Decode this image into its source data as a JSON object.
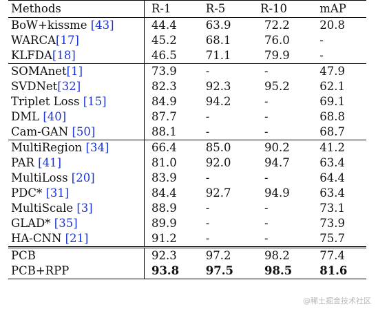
{
  "table": {
    "headers": [
      "Methods",
      "R-1",
      "R-5",
      "R-10",
      "mAP"
    ],
    "groups": [
      [
        {
          "name": "BoW+kissme ",
          "ref": "[43]",
          "r1": "44.4",
          "r5": "63.9",
          "r10": "72.2",
          "map": "20.8"
        },
        {
          "name": "WARCA",
          "ref": "[17]",
          "r1": "45.2",
          "r5": "68.1",
          "r10": "76.0",
          "map": "-"
        },
        {
          "name": "KLFDA",
          "ref": "[18]",
          "r1": "46.5",
          "r5": "71.1",
          "r10": "79.9",
          "map": "-"
        }
      ],
      [
        {
          "name": "SOMAnet",
          "ref": "[1]",
          "r1": "73.9",
          "r5": "-",
          "r10": "-",
          "map": "47.9"
        },
        {
          "name": "SVDNet",
          "ref": "[32]",
          "r1": "82.3",
          "r5": "92.3",
          "r10": "95.2",
          "map": "62.1"
        },
        {
          "name": "Triplet Loss ",
          "ref": "[15]",
          "r1": "84.9",
          "r5": "94.2",
          "r10": "-",
          "map": "69.1"
        },
        {
          "name": "DML ",
          "ref": "[40]",
          "r1": "87.7",
          "r5": "-",
          "r10": "-",
          "map": "68.8"
        },
        {
          "name": "Cam-GAN ",
          "ref": "[50]",
          "r1": "88.1",
          "r5": "-",
          "r10": "-",
          "map": "68.7"
        }
      ],
      [
        {
          "name": "MultiRegion ",
          "ref": "[34]",
          "r1": "66.4",
          "r5": "85.0",
          "r10": "90.2",
          "map": "41.2"
        },
        {
          "name": "PAR ",
          "ref": "[41]",
          "r1": "81.0",
          "r5": "92.0",
          "r10": "94.7",
          "map": "63.4"
        },
        {
          "name": "MultiLoss ",
          "ref": "[20]",
          "r1": "83.9",
          "r5": "-",
          "r10": "-",
          "map": "64.4"
        },
        {
          "name": "PDC* ",
          "ref": "[31]",
          "r1": "84.4",
          "r5": "92.7",
          "r10": "94.9",
          "map": "63.4"
        },
        {
          "name": "MultiScale ",
          "ref": "[3]",
          "r1": "88.9",
          "r5": "-",
          "r10": "-",
          "map": "73.1"
        },
        {
          "name": "GLAD* ",
          "ref": "[35]",
          "r1": "89.9",
          "r5": "-",
          "r10": "-",
          "map": "73.9"
        },
        {
          "name": "HA-CNN ",
          "ref": "[21]",
          "r1": "91.2",
          "r5": "-",
          "r10": "-",
          "map": "75.7"
        }
      ],
      [
        {
          "name": "PCB",
          "ref": "",
          "r1": "92.3",
          "r5": "97.2",
          "r10": "98.2",
          "map": "77.4",
          "bold": false
        },
        {
          "name": "PCB+RPP",
          "ref": "",
          "r1": "93.8",
          "r5": "97.5",
          "r10": "98.5",
          "map": "81.6",
          "bold": true
        }
      ]
    ]
  },
  "watermark": "@稀土掘金技术社区"
}
